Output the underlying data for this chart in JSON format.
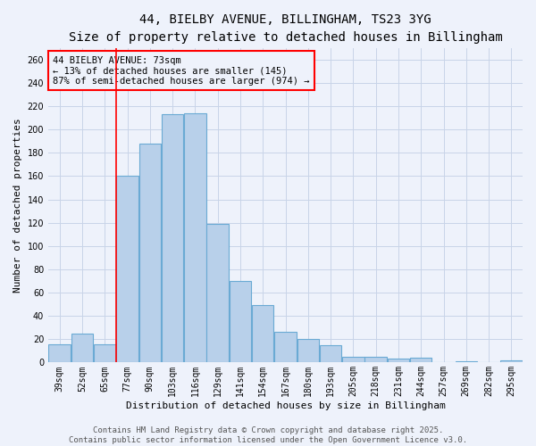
{
  "title_line1": "44, BIELBY AVENUE, BILLINGHAM, TS23 3YG",
  "title_line2": "Size of property relative to detached houses in Billingham",
  "xlabel": "Distribution of detached houses by size in Billingham",
  "ylabel": "Number of detached properties",
  "categories": [
    "39sqm",
    "52sqm",
    "65sqm",
    "77sqm",
    "90sqm",
    "103sqm",
    "116sqm",
    "129sqm",
    "141sqm",
    "154sqm",
    "167sqm",
    "180sqm",
    "193sqm",
    "205sqm",
    "218sqm",
    "231sqm",
    "244sqm",
    "257sqm",
    "269sqm",
    "282sqm",
    "295sqm"
  ],
  "values": [
    16,
    25,
    16,
    160,
    188,
    213,
    214,
    119,
    70,
    49,
    26,
    20,
    15,
    5,
    5,
    3,
    4,
    0,
    1,
    0,
    2
  ],
  "bar_color": "#b8d0ea",
  "bar_edge_color": "#6aaad4",
  "bar_linewidth": 0.8,
  "grid_color": "#c8d4e8",
  "background_color": "#eef2fb",
  "red_line_x": 2.5,
  "annotation_text": "44 BIELBY AVENUE: 73sqm\n← 13% of detached houses are smaller (145)\n87% of semi-detached houses are larger (974) →",
  "ylim": [
    0,
    270
  ],
  "yticks": [
    0,
    20,
    40,
    60,
    80,
    100,
    120,
    140,
    160,
    180,
    200,
    220,
    240,
    260
  ],
  "footer_line1": "Contains HM Land Registry data © Crown copyright and database right 2025.",
  "footer_line2": "Contains public sector information licensed under the Open Government Licence v3.0.",
  "title_fontsize": 10,
  "subtitle_fontsize": 9,
  "axis_label_fontsize": 8,
  "tick_fontsize": 7,
  "annotation_fontsize": 7.5,
  "footer_fontsize": 6.5
}
